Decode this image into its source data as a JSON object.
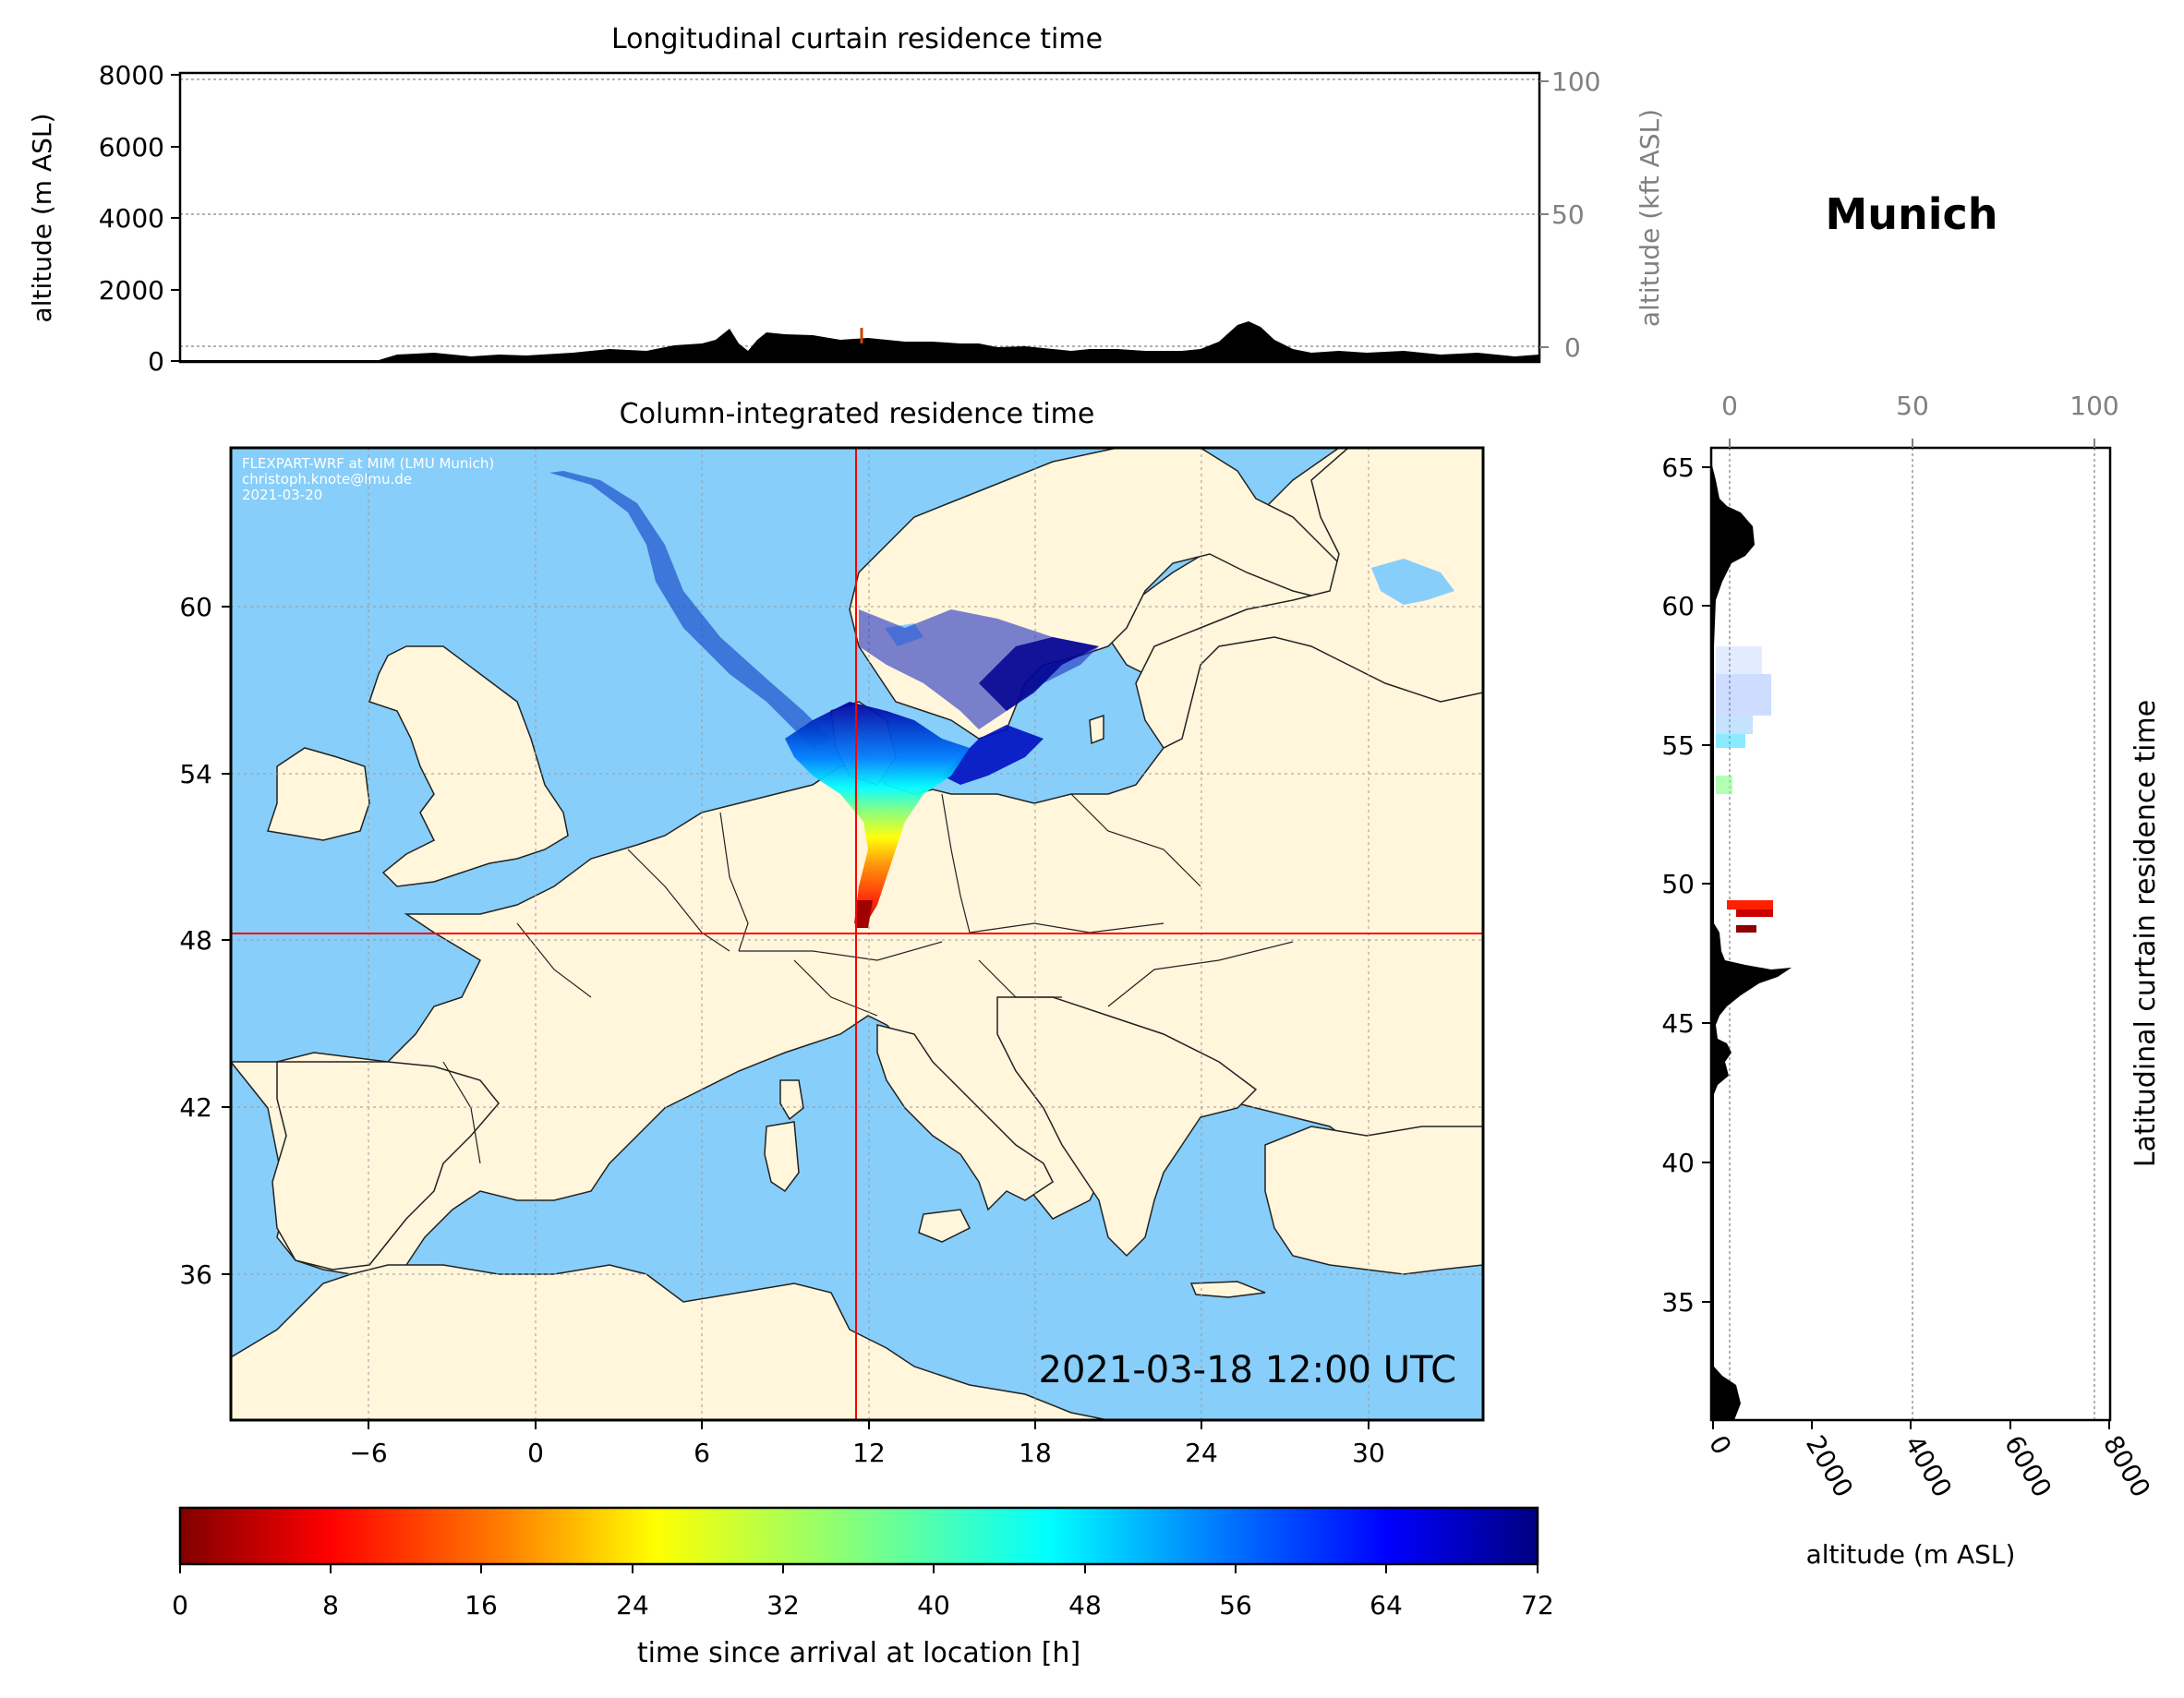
{
  "location_title": "Munich",
  "top_panel": {
    "title": "Longitudinal curtain residence time",
    "ylabel": "altitude (m ASL)",
    "ylabel_right": "altitude (kft ASL)",
    "yticks": [
      "0",
      "2000",
      "4000",
      "6000",
      "8000"
    ],
    "yticks_right": [
      "0",
      "50",
      "100"
    ]
  },
  "map_panel": {
    "title": "Column-integrated residence time",
    "xticks": [
      "−6",
      "0",
      "6",
      "12",
      "18",
      "24",
      "30"
    ],
    "yticks": [
      "36",
      "42",
      "48",
      "54",
      "60"
    ],
    "credit_lines": [
      "FLEXPART-WRF at MIM (LMU Munich)",
      "christoph.knote@lmu.de",
      "2021-03-20"
    ],
    "timestamp": "2021-03-18 12:00 UTC",
    "crosshair": {
      "lon": 11.6,
      "lat": 48.1,
      "color": "#ff0000"
    },
    "extent": {
      "lon_min": -11,
      "lon_max": 34,
      "lat_min": 31,
      "lat_max": 65.8
    },
    "ocean_color": "#87cefa",
    "land_color": "#fff6dc"
  },
  "right_panel": {
    "ylabel": "Latitudinal curtain residence time",
    "xlabel": "altitude (m ASL)",
    "xticks": [
      "0",
      "2000",
      "4000",
      "6000",
      "8000"
    ],
    "xticks_top": [
      "0",
      "50",
      "100"
    ],
    "yticks": [
      "35",
      "40",
      "45",
      "50",
      "55",
      "60",
      "65"
    ]
  },
  "colorbar": {
    "label": "time since arrival at location [h]",
    "ticks": [
      "0",
      "8",
      "16",
      "24",
      "32",
      "40",
      "48",
      "56",
      "64",
      "72"
    ],
    "min": 0,
    "max": 72,
    "colormap": "jet_r"
  }
}
